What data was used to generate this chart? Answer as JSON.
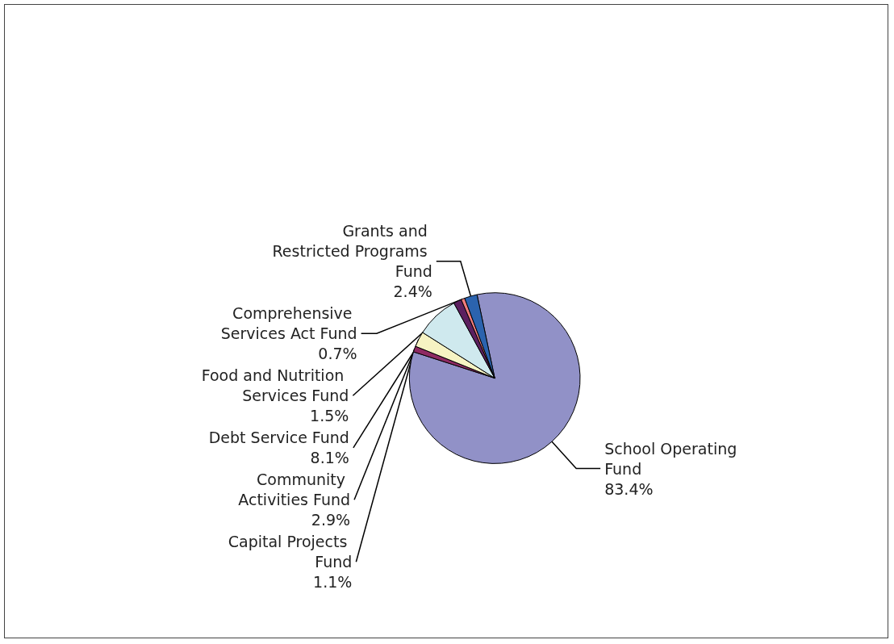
{
  "chart_data": {
    "type": "pie",
    "categories": [
      "School Operating Fund",
      "Capital Projects Fund",
      "Community Activities Fund",
      "Debt Service Fund",
      "Food and Nutrition Services Fund",
      "Comprehensive Services Act Fund",
      "Grants and Restricted Programs Fund"
    ],
    "values": [
      83.4,
      1.1,
      2.9,
      8.1,
      1.5,
      0.7,
      2.4
    ],
    "value_labels": [
      "83.4%",
      "1.1%",
      "2.9%",
      "8.1%",
      "1.5%",
      "0.7%",
      "2.4%"
    ],
    "colors": [
      "#9191c7",
      "#8e2a62",
      "#f6f3c3",
      "#cfe9ee",
      "#5b1f5f",
      "#f07c7c",
      "#2b63ae"
    ],
    "legend": false
  }
}
